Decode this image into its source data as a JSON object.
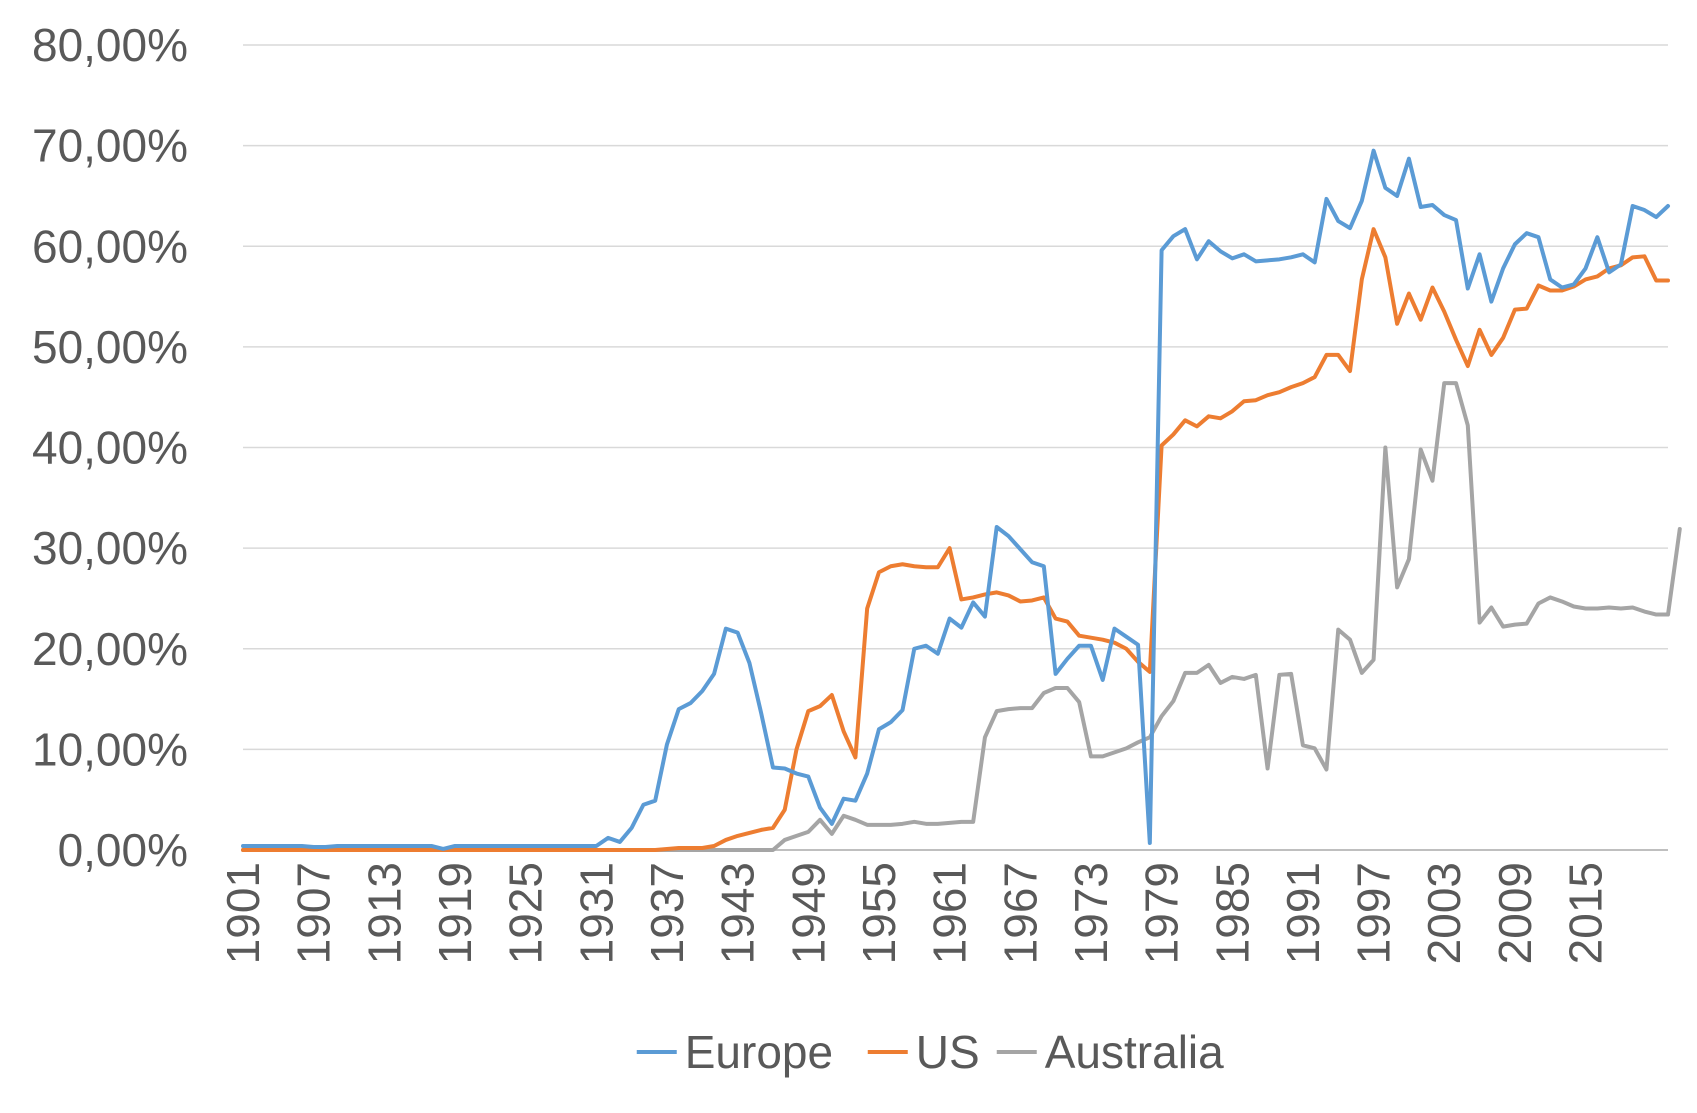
{
  "chart_data": {
    "type": "line",
    "title": "",
    "xlabel": "",
    "ylabel": "",
    "ylim": [
      0,
      0.8
    ],
    "y_ticks": [
      {
        "value": 0.0,
        "label": "0,00%"
      },
      {
        "value": 0.1,
        "label": "10,00%"
      },
      {
        "value": 0.2,
        "label": "20,00%"
      },
      {
        "value": 0.3,
        "label": "30,00%"
      },
      {
        "value": 0.4,
        "label": "40,00%"
      },
      {
        "value": 0.5,
        "label": "50,00%"
      },
      {
        "value": 0.6,
        "label": "60,00%"
      },
      {
        "value": 0.7,
        "label": "70,00%"
      },
      {
        "value": 0.8,
        "label": "80,00%"
      }
    ],
    "x_ticks": [
      "1901",
      "1907",
      "1913",
      "1919",
      "1925",
      "1931",
      "1937",
      "1943",
      "1949",
      "1955",
      "1961",
      "1967",
      "1973",
      "1979",
      "1985",
      "1991",
      "1997",
      "2003",
      "2009",
      "2015"
    ],
    "grid": true,
    "legend_position": "bottom",
    "x_start": 1901,
    "x_end": 2015,
    "series": [
      {
        "name": "Europe",
        "color": "#5b9bd5",
        "values": [
          0.004,
          0.004,
          0.004,
          0.004,
          0.004,
          0.004,
          0.003,
          0.003,
          0.004,
          0.004,
          0.004,
          0.004,
          0.004,
          0.004,
          0.004,
          0.004,
          0.004,
          0.001,
          0.004,
          0.004,
          0.004,
          0.004,
          0.004,
          0.004,
          0.004,
          0.004,
          0.004,
          0.004,
          0.004,
          0.004,
          0.004,
          0.012,
          0.008,
          0.022,
          0.045,
          0.049,
          0.105,
          0.14,
          0.146,
          0.158,
          0.175,
          0.22,
          0.216,
          0.186,
          0.136,
          0.082,
          0.081,
          0.076,
          0.073,
          0.042,
          0.026,
          0.051,
          0.049,
          0.076,
          0.12,
          0.127,
          0.139,
          0.2,
          0.203,
          0.195,
          0.23,
          0.221,
          0.246,
          0.232,
          0.321,
          0.312,
          0.299,
          0.286,
          0.282,
          0.175,
          0.19,
          0.203,
          0.203,
          0.169,
          0.22,
          0.212,
          0.204,
          0.007,
          0.596,
          0.61,
          0.617,
          0.587,
          0.605,
          0.595,
          0.588,
          0.592,
          0.585,
          0.586,
          0.587,
          0.589,
          0.592,
          0.584,
          0.647,
          0.625,
          0.618,
          0.645,
          0.695,
          0.658,
          0.65,
          0.687,
          0.639,
          0.641,
          0.631,
          0.626,
          0.558,
          0.592,
          0.545,
          0.578,
          0.602,
          0.613,
          0.609,
          0.567,
          0.559,
          0.562,
          0.578,
          0.609,
          0.574,
          0.582,
          0.64,
          0.636,
          0.629,
          0.64
        ]
      },
      {
        "name": "US",
        "color": "#ed7d31",
        "values": [
          0,
          0,
          0,
          0,
          0,
          0,
          0,
          0,
          0,
          0,
          0,
          0,
          0,
          0,
          0,
          0,
          0,
          0,
          0,
          0,
          0,
          0,
          0,
          0,
          0,
          0,
          0,
          0,
          0,
          0,
          0,
          0,
          0,
          0,
          0,
          0,
          0.001,
          0.002,
          0.002,
          0.002,
          0.004,
          0.01,
          0.014,
          0.017,
          0.02,
          0.022,
          0.04,
          0.1,
          0.138,
          0.143,
          0.154,
          0.118,
          0.092,
          0.24,
          0.276,
          0.282,
          0.284,
          0.282,
          0.281,
          0.281,
          0.3,
          0.249,
          0.251,
          0.254,
          0.256,
          0.253,
          0.247,
          0.248,
          0.251,
          0.23,
          0.227,
          0.213,
          0.211,
          0.209,
          0.206,
          0.2,
          0.187,
          0.177,
          0.402,
          0.413,
          0.427,
          0.421,
          0.431,
          0.429,
          0.436,
          0.446,
          0.447,
          0.452,
          0.455,
          0.46,
          0.464,
          0.47,
          0.492,
          0.492,
          0.476,
          0.567,
          0.617,
          0.589,
          0.523,
          0.553,
          0.527,
          0.559,
          0.535,
          0.507,
          0.481,
          0.517,
          0.492,
          0.509,
          0.537,
          0.538,
          0.561,
          0.556,
          0.556,
          0.56,
          0.567,
          0.57,
          0.578,
          0.581,
          0.589,
          0.59,
          0.566,
          0.566
        ]
      },
      {
        "name": "Australia",
        "color": "#a5a5a5",
        "values": [
          0,
          0,
          0,
          0,
          0,
          0,
          0,
          0,
          0,
          0,
          0,
          0,
          0,
          0,
          0,
          0,
          0,
          0,
          0,
          0,
          0,
          0,
          0,
          0,
          0,
          0,
          0,
          0,
          0,
          0,
          0,
          0,
          0,
          0,
          0,
          0,
          0,
          0,
          0,
          0,
          0,
          0,
          0,
          0,
          0,
          0,
          0.01,
          0.014,
          0.018,
          0.03,
          0.016,
          0.034,
          0.03,
          0.025,
          0.025,
          0.025,
          0.026,
          0.028,
          0.026,
          0.026,
          0.027,
          0.028,
          0.028,
          0.112,
          0.138,
          0.14,
          0.141,
          0.141,
          0.156,
          0.161,
          0.161,
          0.147,
          0.093,
          0.093,
          0.097,
          0.101,
          0.107,
          0.112,
          0.133,
          0.148,
          0.176,
          0.176,
          0.184,
          0.166,
          0.172,
          0.17,
          0.174,
          0.081,
          0.174,
          0.175,
          0.104,
          0.101,
          0.08,
          0.219,
          0.209,
          0.176,
          0.189,
          0.4,
          0.261,
          0.289,
          0.398,
          0.367,
          0.464,
          0.464,
          0.422,
          0.226,
          0.241,
          0.222,
          0.224,
          0.225,
          0.245,
          0.251,
          0.247,
          0.242,
          0.24,
          0.24,
          0.241,
          0.24,
          0.241,
          0.237,
          0.234,
          0.234,
          0.319
        ]
      }
    ]
  }
}
